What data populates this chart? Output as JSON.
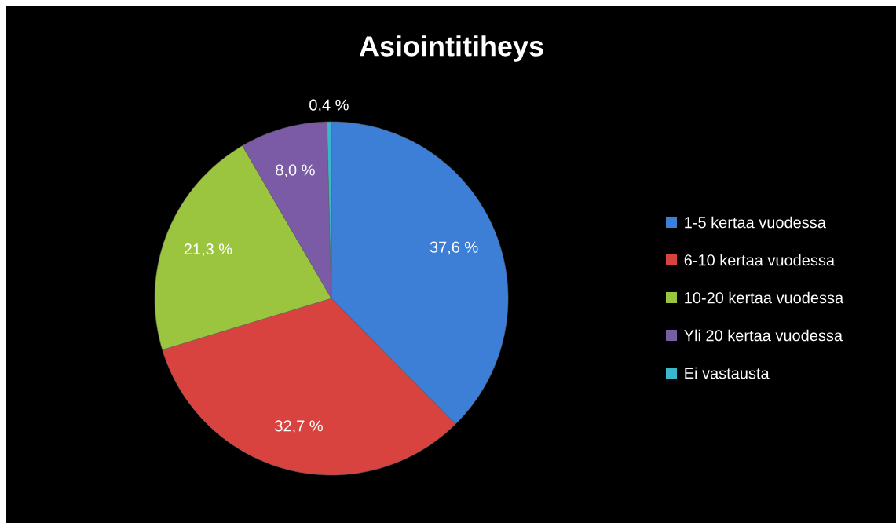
{
  "chart_data": {
    "type": "pie",
    "title": "Asiointitiheys",
    "categories": [
      "1-5 kertaa vuodessa",
      "6-10 kertaa vuodessa",
      "10-20 kertaa vuodessa",
      "Yli 20 kertaa vuodessa",
      "Ei vastausta"
    ],
    "values": [
      37.6,
      32.7,
      21.3,
      8.0,
      0.4
    ],
    "value_labels": [
      "37,6 %",
      "32,7 %",
      "21,3 %",
      "8,0 %",
      "0,4 %"
    ],
    "colors": [
      "#3d7fd6",
      "#d8433f",
      "#9bc43f",
      "#7b5aa6",
      "#3cb6cc"
    ],
    "legend": "right"
  }
}
